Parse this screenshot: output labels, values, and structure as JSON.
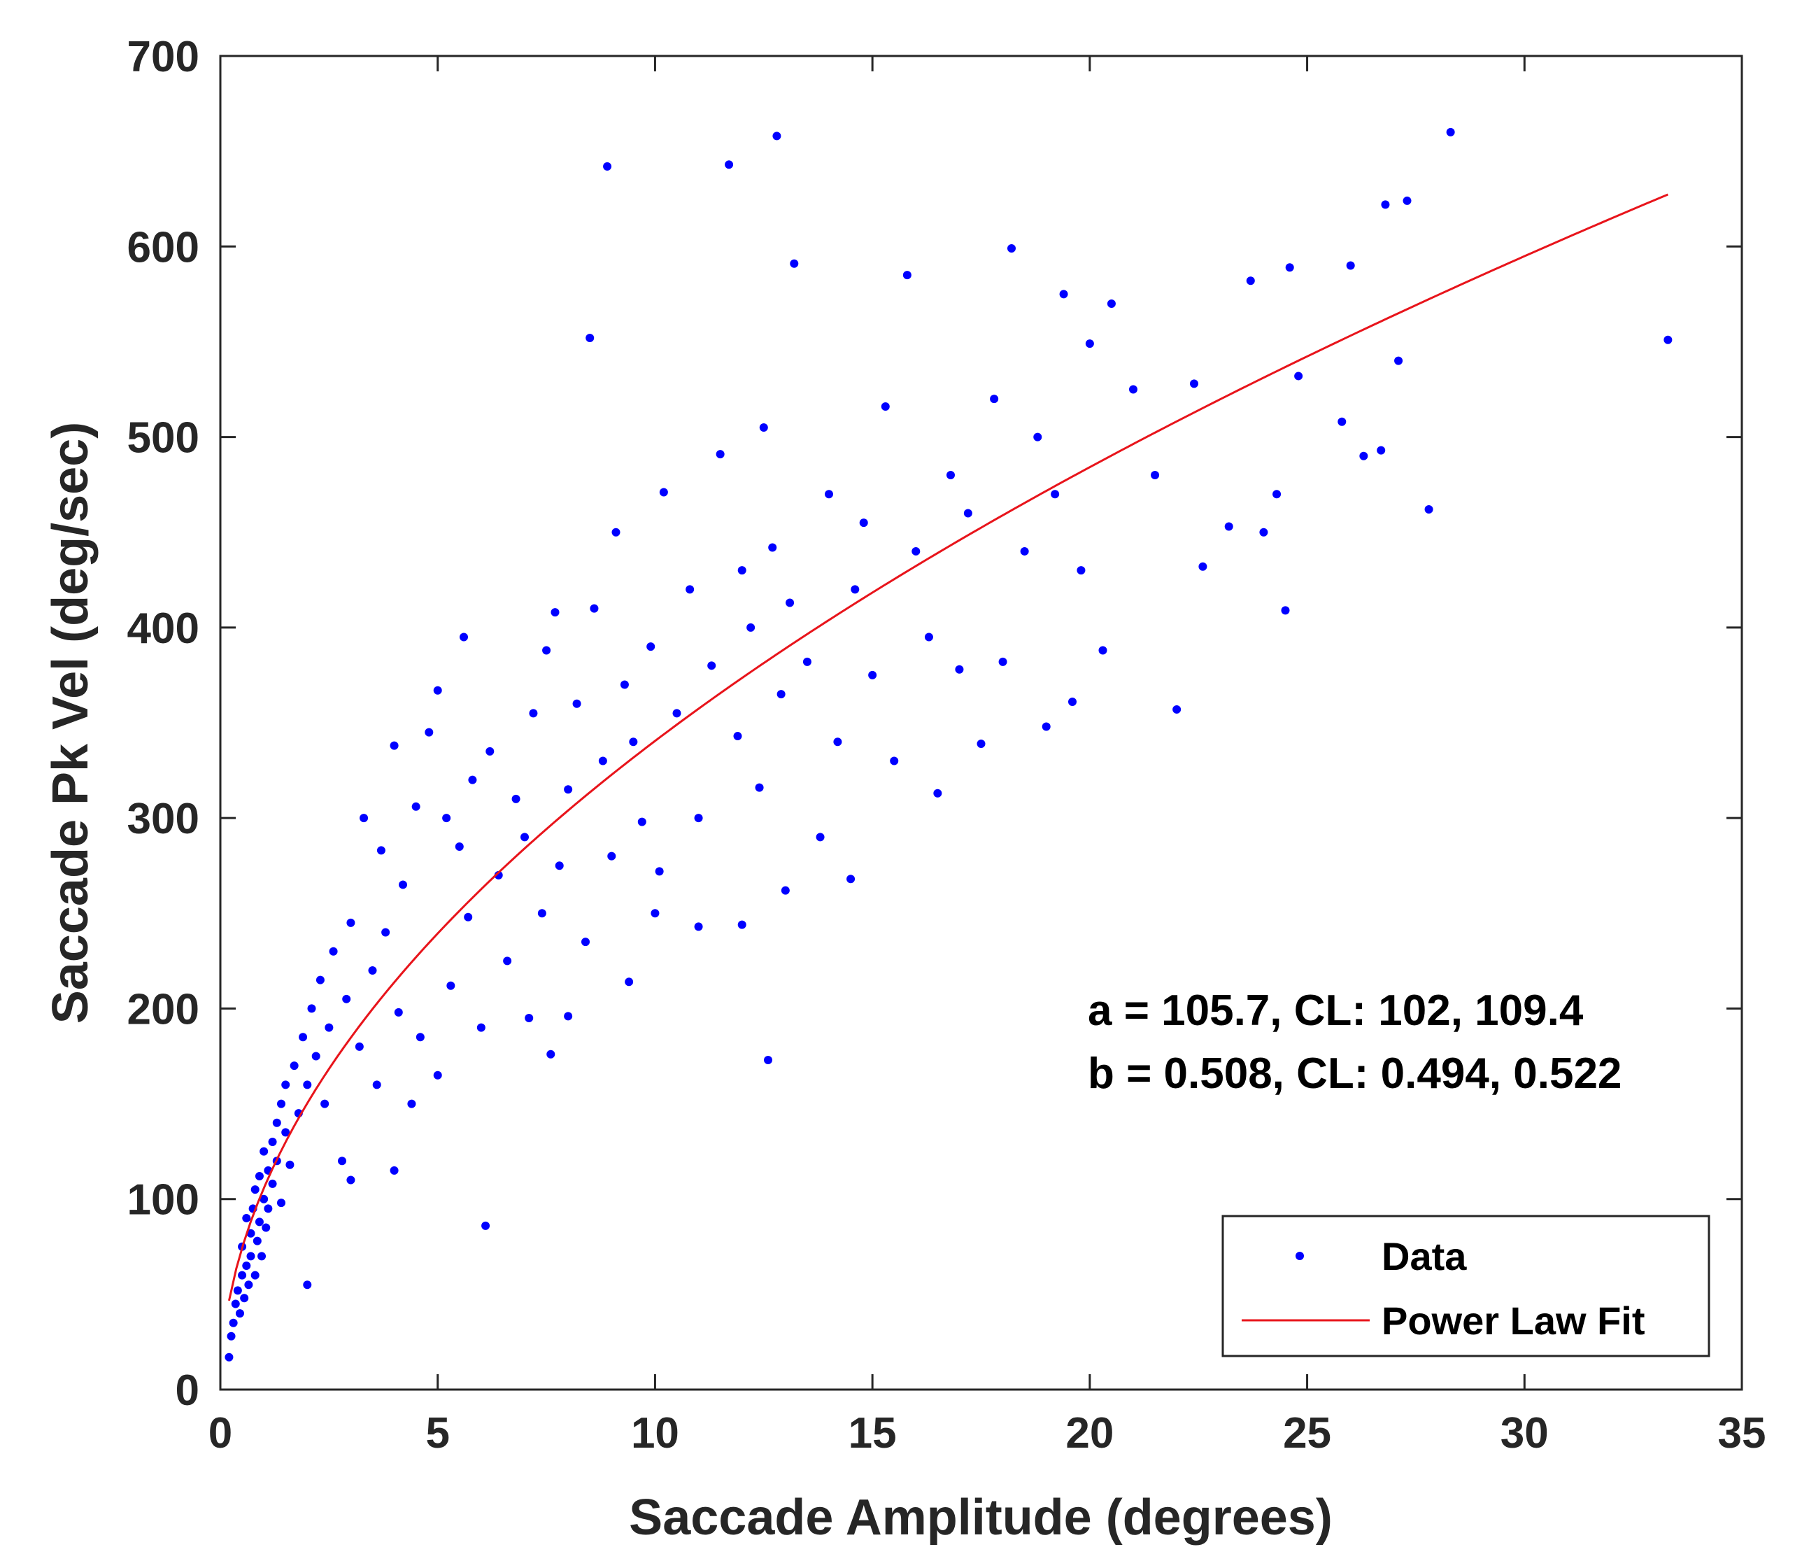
{
  "chart_data": {
    "type": "scatter",
    "title": "",
    "xlabel": "Saccade Amplitude (degrees)",
    "ylabel": "Saccade Pk Vel (deg/sec)",
    "xlim": [
      0,
      35
    ],
    "ylim": [
      0,
      700
    ],
    "xticks": [
      0,
      5,
      10,
      15,
      20,
      25,
      30,
      35
    ],
    "yticks": [
      0,
      100,
      200,
      300,
      400,
      500,
      600,
      700
    ],
    "xtick_labels": [
      "0",
      "5",
      "10",
      "15",
      "20",
      "25",
      "30",
      "35"
    ],
    "ytick_labels": [
      "0",
      "100",
      "200",
      "300",
      "400",
      "500",
      "600",
      "700"
    ],
    "grid": false,
    "legend_position": "bottom-right",
    "series": [
      {
        "name": "Data",
        "kind": "points",
        "color": "#0000ff",
        "points": [
          [
            0.2,
            17
          ],
          [
            0.25,
            28
          ],
          [
            0.3,
            35
          ],
          [
            0.35,
            45
          ],
          [
            0.4,
            52
          ],
          [
            0.45,
            40
          ],
          [
            0.5,
            60
          ],
          [
            0.5,
            75
          ],
          [
            0.55,
            48
          ],
          [
            0.6,
            65
          ],
          [
            0.6,
            90
          ],
          [
            0.65,
            55
          ],
          [
            0.7,
            82
          ],
          [
            0.7,
            70
          ],
          [
            0.75,
            95
          ],
          [
            0.8,
            60
          ],
          [
            0.8,
            105
          ],
          [
            0.85,
            78
          ],
          [
            0.9,
            88
          ],
          [
            0.9,
            112
          ],
          [
            0.95,
            70
          ],
          [
            1.0,
            100
          ],
          [
            1.0,
            125
          ],
          [
            1.05,
            85
          ],
          [
            1.1,
            115
          ],
          [
            1.1,
            95
          ],
          [
            1.2,
            130
          ],
          [
            1.2,
            108
          ],
          [
            1.3,
            120
          ],
          [
            1.3,
            140
          ],
          [
            1.4,
            98
          ],
          [
            1.4,
            150
          ],
          [
            1.5,
            135
          ],
          [
            1.5,
            160
          ],
          [
            1.6,
            118
          ],
          [
            1.7,
            170
          ],
          [
            1.8,
            145
          ],
          [
            1.9,
            185
          ],
          [
            2.0,
            55
          ],
          [
            2.0,
            160
          ],
          [
            2.1,
            200
          ],
          [
            2.2,
            175
          ],
          [
            2.3,
            215
          ],
          [
            2.4,
            150
          ],
          [
            2.5,
            190
          ],
          [
            2.6,
            230
          ],
          [
            2.8,
            120
          ],
          [
            2.9,
            205
          ],
          [
            3.0,
            245
          ],
          [
            3.0,
            110
          ],
          [
            3.2,
            180
          ],
          [
            3.3,
            300
          ],
          [
            3.5,
            220
          ],
          [
            3.6,
            160
          ],
          [
            3.7,
            283
          ],
          [
            3.8,
            240
          ],
          [
            4.0,
            115
          ],
          [
            4.0,
            338
          ],
          [
            4.1,
            198
          ],
          [
            4.2,
            265
          ],
          [
            4.4,
            150
          ],
          [
            4.5,
            306
          ],
          [
            4.6,
            185
          ],
          [
            4.8,
            345
          ],
          [
            5.0,
            367
          ],
          [
            5.0,
            165
          ],
          [
            5.2,
            300
          ],
          [
            5.3,
            212
          ],
          [
            5.5,
            285
          ],
          [
            5.6,
            395
          ],
          [
            5.7,
            248
          ],
          [
            5.8,
            320
          ],
          [
            6.0,
            190
          ],
          [
            6.1,
            86
          ],
          [
            6.2,
            335
          ],
          [
            6.4,
            270
          ],
          [
            6.6,
            225
          ],
          [
            6.8,
            310
          ],
          [
            7.0,
            290
          ],
          [
            7.1,
            195
          ],
          [
            7.2,
            355
          ],
          [
            7.4,
            250
          ],
          [
            7.5,
            388
          ],
          [
            7.6,
            176
          ],
          [
            7.7,
            408
          ],
          [
            7.8,
            275
          ],
          [
            8.0,
            315
          ],
          [
            8.0,
            196
          ],
          [
            8.2,
            360
          ],
          [
            8.4,
            235
          ],
          [
            8.5,
            552
          ],
          [
            8.6,
            410
          ],
          [
            8.8,
            330
          ],
          [
            8.9,
            642
          ],
          [
            9.0,
            280
          ],
          [
            9.1,
            450
          ],
          [
            9.3,
            370
          ],
          [
            9.4,
            214
          ],
          [
            9.5,
            340
          ],
          [
            9.7,
            298
          ],
          [
            9.9,
            390
          ],
          [
            10.0,
            250
          ],
          [
            10.1,
            272
          ],
          [
            10.2,
            471
          ],
          [
            10.5,
            355
          ],
          [
            10.8,
            420
          ],
          [
            11.0,
            300
          ],
          [
            11.0,
            243
          ],
          [
            11.3,
            380
          ],
          [
            11.5,
            491
          ],
          [
            11.7,
            643
          ],
          [
            11.9,
            343
          ],
          [
            12.0,
            430
          ],
          [
            12.0,
            244
          ],
          [
            12.2,
            400
          ],
          [
            12.4,
            316
          ],
          [
            12.5,
            505
          ],
          [
            12.6,
            173
          ],
          [
            12.7,
            442
          ],
          [
            12.8,
            658
          ],
          [
            12.9,
            365
          ],
          [
            13.0,
            262
          ],
          [
            13.1,
            413
          ],
          [
            13.2,
            591
          ],
          [
            13.5,
            382
          ],
          [
            13.8,
            290
          ],
          [
            14.0,
            470
          ],
          [
            14.2,
            340
          ],
          [
            14.5,
            268
          ],
          [
            14.6,
            420
          ],
          [
            14.8,
            455
          ],
          [
            15.0,
            375
          ],
          [
            15.3,
            516
          ],
          [
            15.5,
            330
          ],
          [
            15.8,
            585
          ],
          [
            16.0,
            440
          ],
          [
            16.3,
            395
          ],
          [
            16.5,
            313
          ],
          [
            16.8,
            480
          ],
          [
            17.0,
            378
          ],
          [
            17.2,
            460
          ],
          [
            17.5,
            339
          ],
          [
            17.8,
            520
          ],
          [
            18.0,
            382
          ],
          [
            18.2,
            599
          ],
          [
            18.5,
            440
          ],
          [
            18.8,
            500
          ],
          [
            19.0,
            348
          ],
          [
            19.2,
            470
          ],
          [
            19.4,
            575
          ],
          [
            19.6,
            361
          ],
          [
            19.8,
            430
          ],
          [
            20.0,
            549
          ],
          [
            20.3,
            388
          ],
          [
            20.5,
            570
          ],
          [
            21.0,
            525
          ],
          [
            21.5,
            480
          ],
          [
            22.0,
            357
          ],
          [
            22.4,
            528
          ],
          [
            22.6,
            432
          ],
          [
            23.2,
            453
          ],
          [
            23.7,
            582
          ],
          [
            24.0,
            450
          ],
          [
            24.3,
            470
          ],
          [
            24.5,
            409
          ],
          [
            24.6,
            589
          ],
          [
            24.8,
            532
          ],
          [
            25.8,
            508
          ],
          [
            26.0,
            590
          ],
          [
            26.3,
            490
          ],
          [
            26.7,
            493
          ],
          [
            26.8,
            622
          ],
          [
            27.1,
            540
          ],
          [
            27.3,
            624
          ],
          [
            27.8,
            462
          ],
          [
            28.3,
            660
          ],
          [
            33.3,
            551
          ]
        ]
      },
      {
        "name": "Power Law Fit",
        "kind": "curve",
        "color": "#e8141b",
        "equation": "y = a * x^b",
        "a": 105.7,
        "b": 0.508,
        "x_range": [
          0.2,
          33.3
        ]
      }
    ],
    "annotations": [
      "a = 105.7, CL: 102, 109.4",
      "b = 0.508, CL: 0.494, 0.522"
    ]
  }
}
